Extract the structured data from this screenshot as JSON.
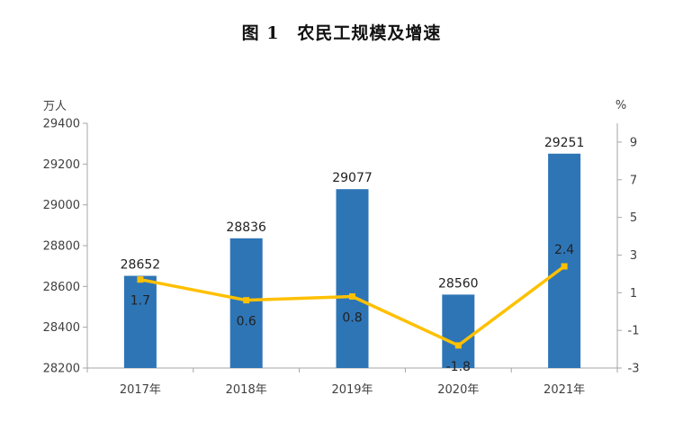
{
  "title": "图 1　农民工规模及增速",
  "chart_data": {
    "type": "bar",
    "title": "图 1　农民工规模及增速",
    "categories": [
      "2017年",
      "2018年",
      "2019年",
      "2020年",
      "2021年"
    ],
    "series": [
      {
        "type": "bar",
        "axis": "left",
        "values": [
          28652,
          28836,
          29077,
          28560,
          29251
        ],
        "color": "#2E75B6"
      },
      {
        "type": "line",
        "axis": "right",
        "values": [
          1.7,
          0.6,
          0.8,
          -1.8,
          2.4
        ],
        "color": "#FFC000"
      }
    ],
    "y_left": {
      "unit": "万人",
      "ylim": [
        28200,
        29400
      ],
      "ticks": [
        "28200",
        "28400",
        "28600",
        "28800",
        "29000",
        "29200",
        "29400"
      ]
    },
    "y_right": {
      "unit": "%",
      "ylim": [
        -3,
        10
      ],
      "ticks": [
        "-3",
        "-1",
        "1",
        "3",
        "5",
        "7",
        "9"
      ]
    },
    "grid": false,
    "legend": "none"
  }
}
